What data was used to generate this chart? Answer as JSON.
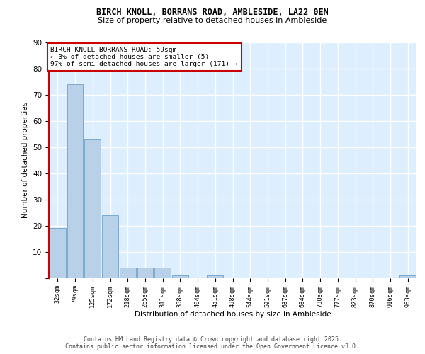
{
  "title_line1": "BIRCH KNOLL, BORRANS ROAD, AMBLESIDE, LA22 0EN",
  "title_line2": "Size of property relative to detached houses in Ambleside",
  "xlabel": "Distribution of detached houses by size in Ambleside",
  "ylabel": "Number of detached properties",
  "categories": [
    "32sqm",
    "79sqm",
    "125sqm",
    "172sqm",
    "218sqm",
    "265sqm",
    "311sqm",
    "358sqm",
    "404sqm",
    "451sqm",
    "498sqm",
    "544sqm",
    "591sqm",
    "637sqm",
    "684sqm",
    "730sqm",
    "777sqm",
    "823sqm",
    "870sqm",
    "916sqm",
    "963sqm"
  ],
  "values": [
    19,
    74,
    53,
    24,
    4,
    4,
    4,
    1,
    0,
    1,
    0,
    0,
    0,
    0,
    0,
    0,
    0,
    0,
    0,
    0,
    1
  ],
  "bar_color": "#b8d0e8",
  "bar_edge_color": "#7aaad0",
  "background_color": "#ddeeff",
  "grid_color": "#ffffff",
  "annotation_line1": "BIRCH KNOLL BORRANS ROAD: 59sqm",
  "annotation_line2": "← 3% of detached houses are smaller (5)",
  "annotation_line3": "97% of semi-detached houses are larger (171) →",
  "annotation_box_facecolor": "#ffffff",
  "annotation_box_edgecolor": "#cc0000",
  "vline_color": "#cc0000",
  "ylim": [
    0,
    90
  ],
  "yticks": [
    0,
    10,
    20,
    30,
    40,
    50,
    60,
    70,
    80,
    90
  ],
  "footer_text": "Contains HM Land Registry data © Crown copyright and database right 2025.\nContains public sector information licensed under the Open Government Licence v3.0."
}
